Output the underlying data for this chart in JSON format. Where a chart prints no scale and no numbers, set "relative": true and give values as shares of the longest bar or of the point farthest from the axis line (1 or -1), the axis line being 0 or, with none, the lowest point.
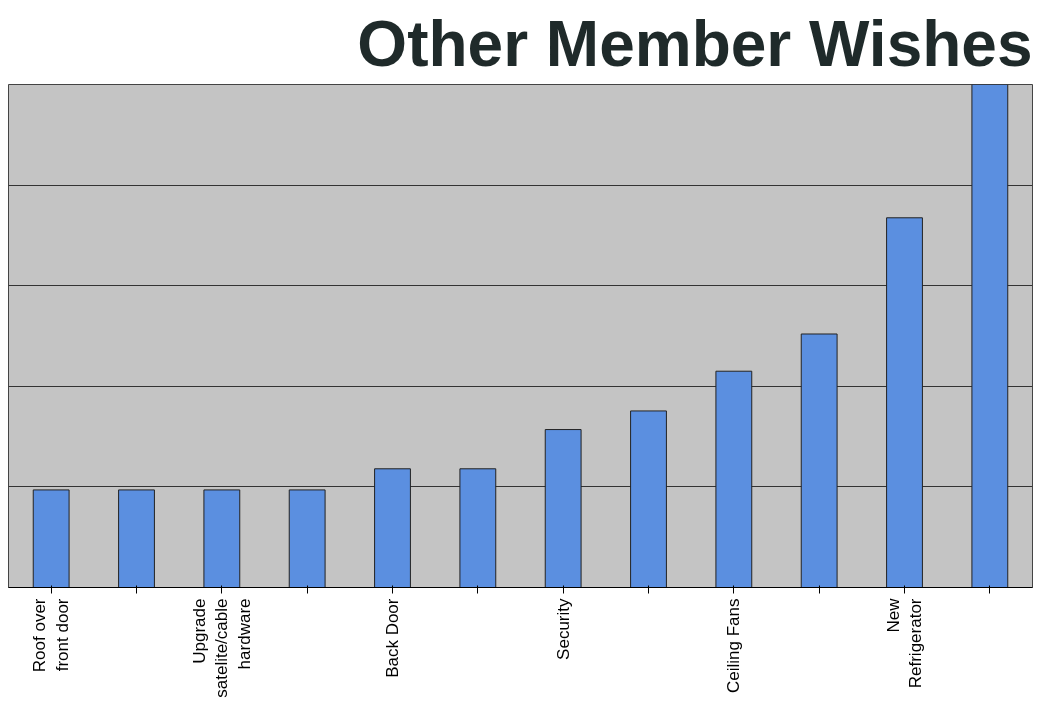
{
  "chart_data": {
    "type": "bar",
    "title": "Other Member Wishes",
    "relative": true,
    "grid": "y",
    "color": "#5b8fe0",
    "categories": [
      "Roof over front door",
      null,
      "Upgrade satelite/cable hardware",
      null,
      "Back Door",
      null,
      "Security",
      null,
      "Ceiling Fans",
      null,
      "New Refrigerator",
      null
    ],
    "values": [
      0.194,
      0.194,
      0.194,
      0.194,
      0.236,
      0.236,
      0.314,
      0.351,
      0.43,
      0.504,
      0.735,
      1.0
    ]
  }
}
